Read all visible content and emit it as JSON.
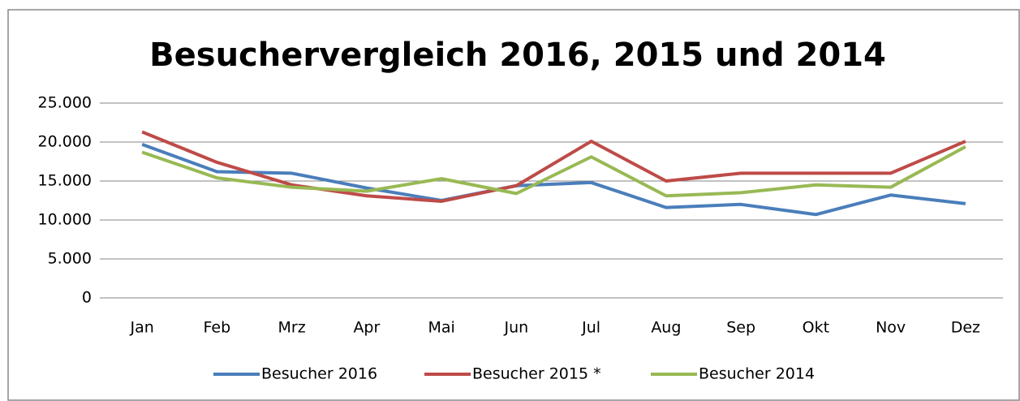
{
  "chart_data": {
    "type": "line",
    "title": "Besuchervergleich 2016, 2015 und 2014",
    "categories": [
      "Jan",
      "Feb",
      "Mrz",
      "Apr",
      "Mai",
      "Jun",
      "Jul",
      "Aug",
      "Sep",
      "Okt",
      "Nov",
      "Dez"
    ],
    "series": [
      {
        "name": "Besucher 2016",
        "color": "#4a7ebb",
        "values": [
          19700,
          16200,
          16000,
          14100,
          12500,
          14400,
          14800,
          11600,
          12000,
          10700,
          13200,
          12100
        ]
      },
      {
        "name": "Besucher 2015 *",
        "color": "#be4b48",
        "values": [
          21300,
          17400,
          14500,
          13100,
          12400,
          14400,
          20100,
          15000,
          16000,
          16000,
          16000,
          20100
        ]
      },
      {
        "name": "Besucher 2014",
        "color": "#98b954",
        "values": [
          18700,
          15400,
          14200,
          13700,
          15300,
          13400,
          18100,
          13100,
          13500,
          14500,
          14200,
          19400
        ]
      }
    ],
    "ylim": [
      0,
      25000
    ],
    "yticks": [
      0,
      {
        "value": 5000,
        "label": "5.000"
      },
      {
        "value": 10000,
        "label": "10.000"
      },
      {
        "value": 15000,
        "label": "15.000"
      },
      {
        "value": 20000,
        "label": "20.000"
      },
      {
        "value": 25000,
        "label": "25.000"
      }
    ],
    "grid": true,
    "legend": "bottom"
  }
}
